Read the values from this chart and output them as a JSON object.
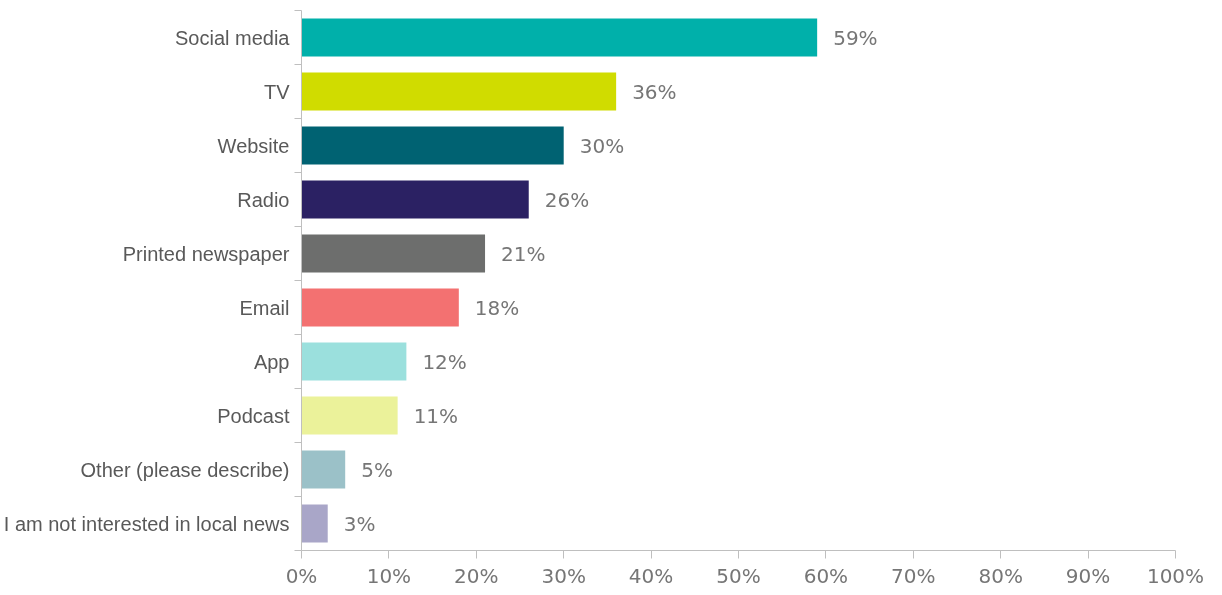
{
  "chart_data": {
    "type": "bar",
    "orientation": "horizontal",
    "categories": [
      "Social media",
      "TV",
      "Website",
      "Radio",
      "Printed newspaper",
      "Email",
      "App",
      "Podcast",
      "Other (please describe)",
      "I am not interested in local news"
    ],
    "values": [
      59,
      36,
      30,
      26,
      21,
      18,
      12,
      11,
      5,
      3
    ],
    "colors": [
      "#00b0aa",
      "#d0dc00",
      "#006272",
      "#2b2163",
      "#6d6e6d",
      "#f37171",
      "#9be0dd",
      "#ebf29a",
      "#9bc1c8",
      "#a9a6c8"
    ],
    "value_labels": [
      "59%",
      "36%",
      "30%",
      "26%",
      "21%",
      "18%",
      "12%",
      "11%",
      "5%",
      "3%"
    ],
    "xlim": [
      0,
      100
    ],
    "xticks": [
      {
        "value": 0,
        "label": "0%"
      },
      {
        "value": 10,
        "label": "10%"
      },
      {
        "value": 20,
        "label": "20%"
      },
      {
        "value": 30,
        "label": "30%"
      },
      {
        "value": 40,
        "label": "40%"
      },
      {
        "value": 50,
        "label": "50%"
      },
      {
        "value": 60,
        "label": "60%"
      },
      {
        "value": 70,
        "label": "70%"
      },
      {
        "value": 80,
        "label": "80%"
      },
      {
        "value": 90,
        "label": "90%"
      },
      {
        "value": 100,
        "label": "100%"
      }
    ],
    "grid": false
  }
}
